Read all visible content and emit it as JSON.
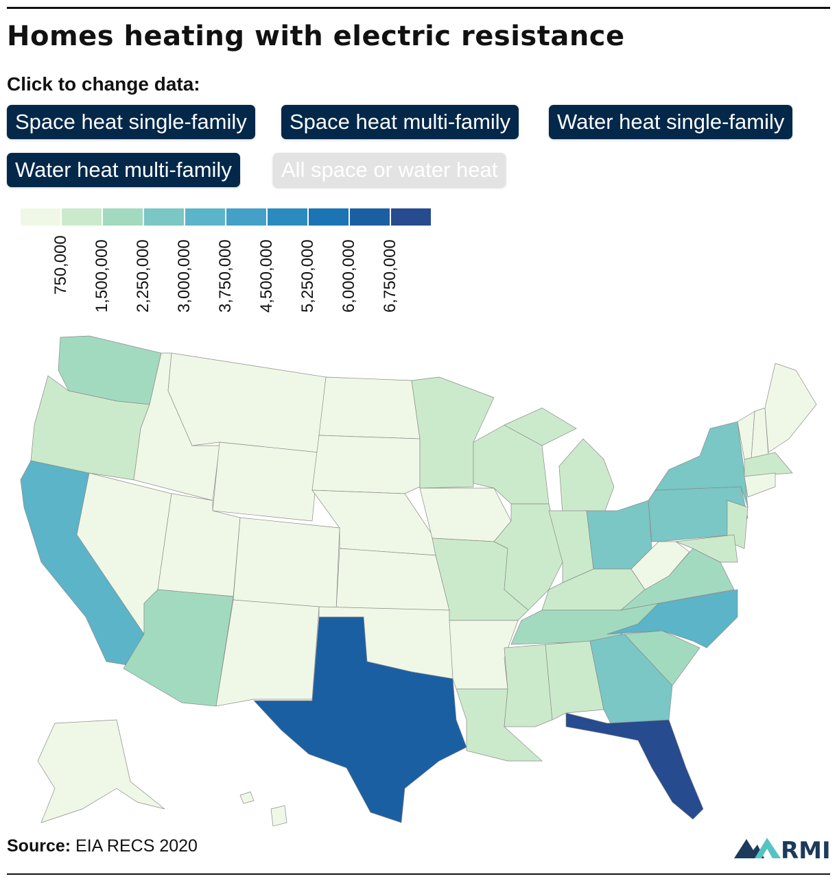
{
  "title": "Homes heating with electric resistance",
  "controls": {
    "prompt": "Click to change data:",
    "buttons": [
      {
        "label": "Space heat single-family",
        "selected": false
      },
      {
        "label": "Space heat multi-family",
        "selected": false
      },
      {
        "label": "Water heat single-family",
        "selected": false
      },
      {
        "label": "Water heat multi-family",
        "selected": false
      },
      {
        "label": "All space or water heat",
        "selected": true
      }
    ]
  },
  "legend": {
    "colors": [
      "#eff8e6",
      "#cbeacb",
      "#a2dac0",
      "#7ac7c5",
      "#5cb4c8",
      "#44a0c7",
      "#2c8bbe",
      "#1b74b3",
      "#1b5fa3",
      "#264b8e"
    ],
    "ticks": [
      "750,000",
      "1,500,000",
      "2,250,000",
      "3,000,000",
      "3,750,000",
      "4,500,000",
      "5,250,000",
      "6,000,000",
      "6,750,000"
    ]
  },
  "map_data": {
    "type": "choropleth",
    "state_color_class": {
      "WA": 2,
      "OR": 1,
      "CA": 4,
      "ID": 0,
      "NV": 0,
      "MT": 0,
      "WY": 0,
      "UT": 0,
      "AZ": 2,
      "CO": 0,
      "NM": 0,
      "ND": 0,
      "SD": 0,
      "NE": 0,
      "KS": 0,
      "OK": 0,
      "TX": 8,
      "MN": 1,
      "IA": 0,
      "MO": 1,
      "AR": 0,
      "LA": 1,
      "WI": 1,
      "IL": 1,
      "MI": 1,
      "IN": 1,
      "OH": 3,
      "KY": 1,
      "TN": 2,
      "MS": 1,
      "AL": 1,
      "GA": 3,
      "FL": 9,
      "SC": 2,
      "NC": 4,
      "VA": 2,
      "WV": 0,
      "PA": 3,
      "NY": 3,
      "NJ": 1,
      "MD": 1,
      "VT": 0,
      "NH": 0,
      "ME": 0,
      "MA": 1,
      "CT": 0,
      "AK": 0,
      "HI": 0
    }
  },
  "footer": {
    "source_label": "Source:",
    "source": "EIA RECS 2020",
    "logo_text": "RMI"
  }
}
